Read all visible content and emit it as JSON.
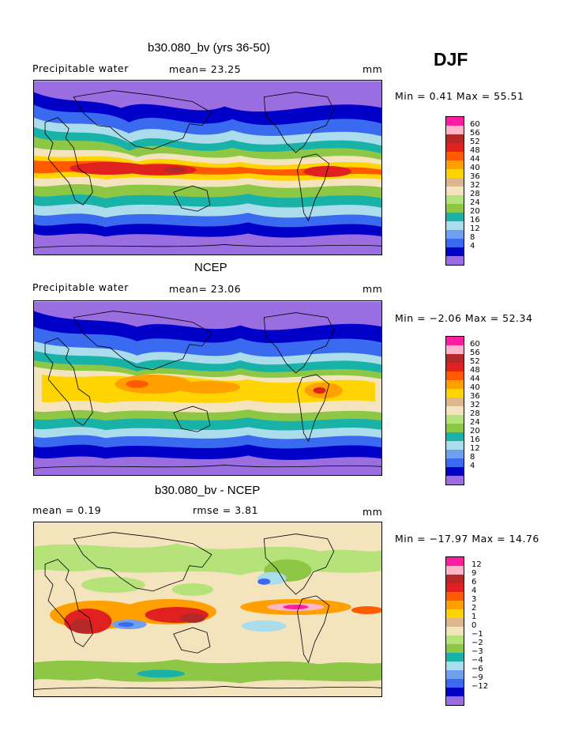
{
  "season": "DJF",
  "colors": [
    "#9a6ee0",
    "#0000c8",
    "#3a6af0",
    "#6fa0f0",
    "#aadcec",
    "#18b2a8",
    "#8ec646",
    "#b6e27a",
    "#f3e4be",
    "#dcb68c",
    "#ffd400",
    "#ffa000",
    "#ff5a00",
    "#e12020",
    "#b42828",
    "#ffb6c8",
    "#ff1ea0"
  ],
  "panels": [
    {
      "title": "b30.080_bv (yrs 36-50)",
      "variable": "Precipitable water",
      "stat": "mean=  23.25",
      "unit": "mm",
      "minmax": "Min =   0.41  Max =  55.51",
      "levels": [
        "60",
        "56",
        "52",
        "48",
        "44",
        "40",
        "36",
        "32",
        "28",
        "24",
        "20",
        "16",
        "12",
        "8",
        "4"
      ]
    },
    {
      "title": "NCEP",
      "variable": "Precipitable water",
      "stat": "mean=  23.06",
      "unit": "mm",
      "minmax": "Min =  −2.06  Max =  52.34",
      "levels": [
        "60",
        "56",
        "52",
        "48",
        "44",
        "40",
        "36",
        "32",
        "28",
        "24",
        "20",
        "16",
        "12",
        "8",
        "4"
      ]
    },
    {
      "title": "b30.080_bv - NCEP",
      "variable": "mean =    0.19",
      "stat": "rmse =    3.81",
      "unit": "mm",
      "minmax": "Min = −17.97  Max =  14.76",
      "levels": [
        "12",
        "9",
        "6",
        "4",
        "3",
        "2",
        "1",
        "0",
        "−1",
        "−2",
        "−3",
        "−4",
        "−6",
        "−9",
        "−12"
      ]
    }
  ]
}
